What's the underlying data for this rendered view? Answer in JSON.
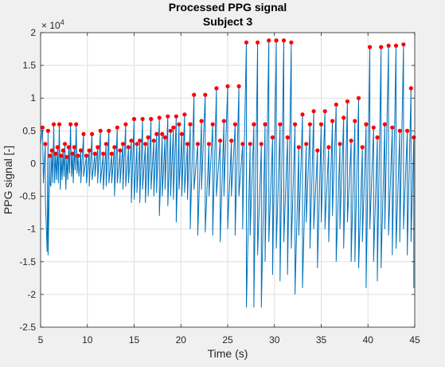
{
  "chart_data": {
    "type": "line",
    "title": "Processed PPG signal",
    "subtitle": "Subject 3",
    "xlabel": "Time (s)",
    "ylabel": "PPG signal [-]",
    "xlim": [
      5,
      45
    ],
    "ylim": [
      -2.5,
      2
    ],
    "y_exponent_label": "× 10^4",
    "y_exponent_base": "× 10",
    "y_exponent_power": "4",
    "y_tick_scale": 10000,
    "x_ticks": [
      5,
      10,
      15,
      20,
      25,
      30,
      35,
      40,
      45
    ],
    "y_ticks": [
      -2.5,
      -2,
      -1.5,
      -1,
      -0.5,
      0,
      0.5,
      1,
      1.5,
      2
    ],
    "y_tick_labels": [
      "-2.5",
      "-2",
      "-1.5",
      "-1",
      "-0.5",
      "0",
      "0.5",
      "1",
      "1.5",
      "2"
    ],
    "grid": true,
    "legend": "none",
    "colors": {
      "line": "#0072bd",
      "peaks": "#ff0000",
      "background": "#ffffff",
      "figure": "#f0f0f0"
    },
    "series": [
      {
        "kind": "line",
        "x": [
          5.0,
          5.3,
          5.5,
          5.7,
          5.8,
          6.0,
          6.1,
          6.3,
          6.5,
          6.7,
          6.9,
          7.1,
          7.3,
          7.5,
          7.7,
          7.9,
          8.1,
          8.3,
          8.5,
          8.7,
          8.9,
          9.1,
          9.3,
          9.6,
          9.9,
          10.2,
          10.5,
          10.8,
          11.1,
          11.4,
          11.7,
          12.0,
          12.3,
          12.6,
          12.9,
          13.2,
          13.5,
          13.8,
          14.1,
          14.4,
          14.7,
          15.0,
          15.3,
          15.6,
          15.9,
          16.2,
          16.5,
          16.8,
          17.1,
          17.4,
          17.7,
          18.0,
          18.3,
          18.6,
          18.9,
          19.2,
          19.5,
          19.8,
          20.1,
          20.4,
          20.7,
          21.0,
          21.4,
          21.8,
          22.2,
          22.6,
          23.0,
          23.4,
          23.8,
          24.2,
          24.6,
          25.0,
          25.4,
          25.8,
          26.2,
          26.6,
          27.0,
          27.4,
          27.8,
          28.2,
          28.6,
          29.0,
          29.4,
          29.8,
          30.2,
          30.6,
          31.0,
          31.4,
          31.8,
          32.2,
          32.6,
          33.0,
          33.4,
          33.8,
          34.2,
          34.6,
          35.0,
          35.4,
          35.8,
          36.2,
          36.6,
          37.0,
          37.4,
          37.8,
          38.2,
          38.6,
          39.0,
          39.4,
          39.8,
          40.2,
          40.6,
          41.0,
          41.4,
          41.8,
          42.2,
          42.6,
          43.0,
          43.4,
          43.8,
          44.2,
          44.6,
          44.9
        ],
        "y": [
          0.3,
          -0.3,
          -0.5,
          -1.35,
          -1.4,
          -0.3,
          -0.35,
          -0.3,
          -0.3,
          -0.25,
          -0.3,
          -0.4,
          -0.25,
          -0.2,
          -0.4,
          -0.25,
          -0.15,
          -0.2,
          -0.3,
          -0.1,
          -0.15,
          -0.2,
          -0.3,
          -0.2,
          -0.3,
          -0.35,
          -0.25,
          -0.2,
          -0.3,
          -0.3,
          -0.4,
          -0.35,
          -0.3,
          -0.3,
          -0.5,
          -0.3,
          -0.3,
          -0.4,
          -0.35,
          -0.3,
          -0.6,
          -0.55,
          -0.45,
          -0.6,
          -0.4,
          -0.6,
          -0.5,
          -0.4,
          -0.5,
          -0.45,
          -0.8,
          -0.5,
          -0.4,
          -0.65,
          -0.5,
          -0.55,
          -0.9,
          -0.4,
          -0.5,
          -0.45,
          -0.55,
          -1.0,
          -0.4,
          -1.1,
          -0.4,
          -1.05,
          -0.5,
          -1.1,
          -0.5,
          -1.2,
          -0.5,
          -1.0,
          -0.5,
          -1.1,
          -0.5,
          -1.0,
          -2.2,
          -1.1,
          -2.2,
          -1.4,
          -2.2,
          -1.5,
          -1.2,
          -1.7,
          -1.3,
          -1.8,
          -1.2,
          -1.7,
          -1.3,
          -2.0,
          -1.1,
          -1.9,
          -0.9,
          -1.3,
          -1.0,
          -1.6,
          -0.9,
          -1.0,
          -1.2,
          -0.8,
          -1.5,
          -1.0,
          -1.3,
          -0.9,
          -1.5,
          -1.5,
          -1.6,
          -1.2,
          -1.9,
          -1.0,
          -1.5,
          -1.8,
          -1.6,
          -1.0,
          -1.1,
          -1.4,
          -1.3,
          -1.2,
          -1.0,
          -1.4,
          -1.2,
          -1.9
        ]
      },
      {
        "kind": "peaks",
        "x": [
          5.2,
          5.5,
          5.8,
          6.0,
          6.2,
          6.4,
          6.6,
          6.8,
          7.0,
          7.2,
          7.4,
          7.6,
          7.8,
          8.0,
          8.2,
          8.4,
          8.6,
          8.8,
          9.0,
          9.3,
          9.6,
          9.9,
          10.2,
          10.5,
          10.8,
          11.1,
          11.4,
          11.7,
          12.0,
          12.3,
          12.6,
          12.9,
          13.2,
          13.5,
          13.8,
          14.1,
          14.4,
          14.7,
          15.0,
          15.3,
          15.6,
          15.9,
          16.2,
          16.5,
          16.8,
          17.1,
          17.4,
          17.7,
          18.0,
          18.3,
          18.6,
          18.9,
          19.2,
          19.5,
          19.8,
          20.1,
          20.4,
          20.7,
          21.0,
          21.4,
          21.8,
          22.2,
          22.6,
          23.0,
          23.4,
          23.8,
          24.2,
          24.6,
          25.0,
          25.4,
          25.8,
          26.2,
          26.6,
          27.0,
          27.4,
          27.8,
          28.2,
          28.6,
          29.0,
          29.4,
          29.8,
          30.2,
          30.6,
          31.0,
          31.4,
          31.8,
          32.2,
          32.6,
          33.0,
          33.4,
          33.8,
          34.2,
          34.6,
          35.0,
          35.4,
          35.8,
          36.2,
          36.6,
          37.0,
          37.4,
          37.8,
          38.2,
          38.6,
          39.0,
          39.4,
          39.8,
          40.2,
          40.6,
          41.0,
          41.4,
          41.8,
          42.2,
          42.6,
          43.0,
          43.4,
          43.8,
          44.2,
          44.6,
          44.9
        ],
        "y": [
          0.55,
          0.3,
          0.5,
          0.12,
          0.2,
          0.6,
          0.15,
          0.25,
          0.6,
          0.12,
          0.2,
          0.3,
          0.1,
          0.25,
          0.6,
          0.15,
          0.25,
          0.6,
          0.12,
          0.2,
          0.45,
          0.12,
          0.2,
          0.45,
          0.15,
          0.25,
          0.5,
          0.15,
          0.3,
          0.5,
          0.15,
          0.25,
          0.55,
          0.2,
          0.3,
          0.6,
          0.25,
          0.35,
          0.68,
          0.3,
          0.35,
          0.68,
          0.3,
          0.4,
          0.68,
          0.35,
          0.45,
          0.7,
          0.45,
          0.4,
          0.72,
          0.5,
          0.55,
          0.72,
          0.6,
          0.45,
          0.75,
          0.3,
          0.6,
          1.05,
          0.3,
          0.65,
          1.05,
          0.3,
          0.6,
          1.15,
          0.35,
          0.65,
          1.18,
          0.35,
          0.6,
          1.18,
          0.3,
          1.85,
          0.3,
          0.6,
          1.85,
          0.3,
          0.6,
          1.88,
          0.4,
          1.88,
          0.6,
          1.88,
          0.4,
          1.85,
          0.6,
          0.25,
          0.75,
          0.3,
          0.6,
          0.8,
          0.2,
          0.6,
          0.8,
          0.25,
          0.65,
          0.9,
          0.3,
          0.7,
          0.95,
          0.35,
          0.65,
          1.0,
          0.25,
          0.6,
          1.78,
          0.55,
          0.4,
          1.78,
          0.6,
          1.8,
          0.55,
          1.8,
          0.5,
          1.82,
          0.5,
          1.15,
          0.4
        ]
      }
    ]
  }
}
